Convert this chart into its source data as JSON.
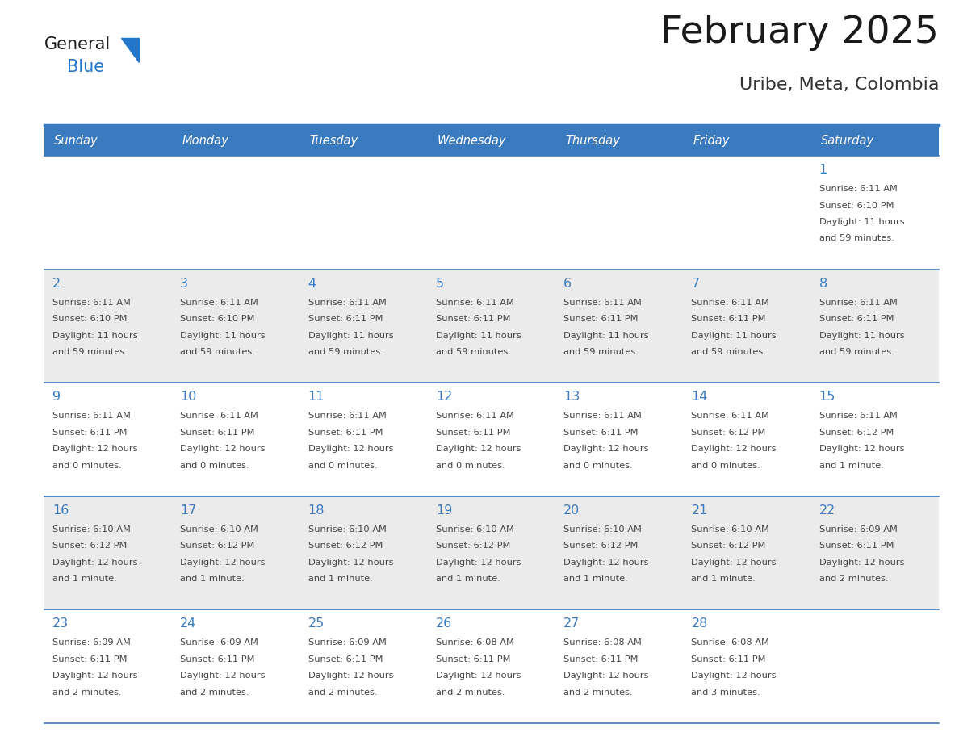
{
  "title": "February 2025",
  "subtitle": "Uribe, Meta, Colombia",
  "header_color": "#3a7abf",
  "header_text_color": "#ffffff",
  "row_bg": [
    "#ffffff",
    "#ebebeb"
  ],
  "border_color": "#3a7abf",
  "day_names": [
    "Sunday",
    "Monday",
    "Tuesday",
    "Wednesday",
    "Thursday",
    "Friday",
    "Saturday"
  ],
  "title_color": "#1a1a1a",
  "subtitle_color": "#333333",
  "day_number_color": "#3a7abf",
  "info_color": "#444444",
  "logo_general_color": "#1a1a1a",
  "logo_blue_color": "#2277cc",
  "calendar": [
    [
      null,
      null,
      null,
      null,
      null,
      null,
      {
        "day": 1,
        "sunrise": "6:11 AM",
        "sunset": "6:10 PM",
        "daylight_hours": 11,
        "daylight_minutes": 59
      }
    ],
    [
      {
        "day": 2,
        "sunrise": "6:11 AM",
        "sunset": "6:10 PM",
        "daylight_hours": 11,
        "daylight_minutes": 59
      },
      {
        "day": 3,
        "sunrise": "6:11 AM",
        "sunset": "6:10 PM",
        "daylight_hours": 11,
        "daylight_minutes": 59
      },
      {
        "day": 4,
        "sunrise": "6:11 AM",
        "sunset": "6:11 PM",
        "daylight_hours": 11,
        "daylight_minutes": 59
      },
      {
        "day": 5,
        "sunrise": "6:11 AM",
        "sunset": "6:11 PM",
        "daylight_hours": 11,
        "daylight_minutes": 59
      },
      {
        "day": 6,
        "sunrise": "6:11 AM",
        "sunset": "6:11 PM",
        "daylight_hours": 11,
        "daylight_minutes": 59
      },
      {
        "day": 7,
        "sunrise": "6:11 AM",
        "sunset": "6:11 PM",
        "daylight_hours": 11,
        "daylight_minutes": 59
      },
      {
        "day": 8,
        "sunrise": "6:11 AM",
        "sunset": "6:11 PM",
        "daylight_hours": 11,
        "daylight_minutes": 59
      }
    ],
    [
      {
        "day": 9,
        "sunrise": "6:11 AM",
        "sunset": "6:11 PM",
        "daylight_hours": 12,
        "daylight_minutes": 0
      },
      {
        "day": 10,
        "sunrise": "6:11 AM",
        "sunset": "6:11 PM",
        "daylight_hours": 12,
        "daylight_minutes": 0
      },
      {
        "day": 11,
        "sunrise": "6:11 AM",
        "sunset": "6:11 PM",
        "daylight_hours": 12,
        "daylight_minutes": 0
      },
      {
        "day": 12,
        "sunrise": "6:11 AM",
        "sunset": "6:11 PM",
        "daylight_hours": 12,
        "daylight_minutes": 0
      },
      {
        "day": 13,
        "sunrise": "6:11 AM",
        "sunset": "6:11 PM",
        "daylight_hours": 12,
        "daylight_minutes": 0
      },
      {
        "day": 14,
        "sunrise": "6:11 AM",
        "sunset": "6:12 PM",
        "daylight_hours": 12,
        "daylight_minutes": 0
      },
      {
        "day": 15,
        "sunrise": "6:11 AM",
        "sunset": "6:12 PM",
        "daylight_hours": 12,
        "daylight_minutes": 1
      }
    ],
    [
      {
        "day": 16,
        "sunrise": "6:10 AM",
        "sunset": "6:12 PM",
        "daylight_hours": 12,
        "daylight_minutes": 1
      },
      {
        "day": 17,
        "sunrise": "6:10 AM",
        "sunset": "6:12 PM",
        "daylight_hours": 12,
        "daylight_minutes": 1
      },
      {
        "day": 18,
        "sunrise": "6:10 AM",
        "sunset": "6:12 PM",
        "daylight_hours": 12,
        "daylight_minutes": 1
      },
      {
        "day": 19,
        "sunrise": "6:10 AM",
        "sunset": "6:12 PM",
        "daylight_hours": 12,
        "daylight_minutes": 1
      },
      {
        "day": 20,
        "sunrise": "6:10 AM",
        "sunset": "6:12 PM",
        "daylight_hours": 12,
        "daylight_minutes": 1
      },
      {
        "day": 21,
        "sunrise": "6:10 AM",
        "sunset": "6:12 PM",
        "daylight_hours": 12,
        "daylight_minutes": 1
      },
      {
        "day": 22,
        "sunrise": "6:09 AM",
        "sunset": "6:11 PM",
        "daylight_hours": 12,
        "daylight_minutes": 2
      }
    ],
    [
      {
        "day": 23,
        "sunrise": "6:09 AM",
        "sunset": "6:11 PM",
        "daylight_hours": 12,
        "daylight_minutes": 2
      },
      {
        "day": 24,
        "sunrise": "6:09 AM",
        "sunset": "6:11 PM",
        "daylight_hours": 12,
        "daylight_minutes": 2
      },
      {
        "day": 25,
        "sunrise": "6:09 AM",
        "sunset": "6:11 PM",
        "daylight_hours": 12,
        "daylight_minutes": 2
      },
      {
        "day": 26,
        "sunrise": "6:08 AM",
        "sunset": "6:11 PM",
        "daylight_hours": 12,
        "daylight_minutes": 2
      },
      {
        "day": 27,
        "sunrise": "6:08 AM",
        "sunset": "6:11 PM",
        "daylight_hours": 12,
        "daylight_minutes": 2
      },
      {
        "day": 28,
        "sunrise": "6:08 AM",
        "sunset": "6:11 PM",
        "daylight_hours": 12,
        "daylight_minutes": 3
      },
      null
    ]
  ]
}
